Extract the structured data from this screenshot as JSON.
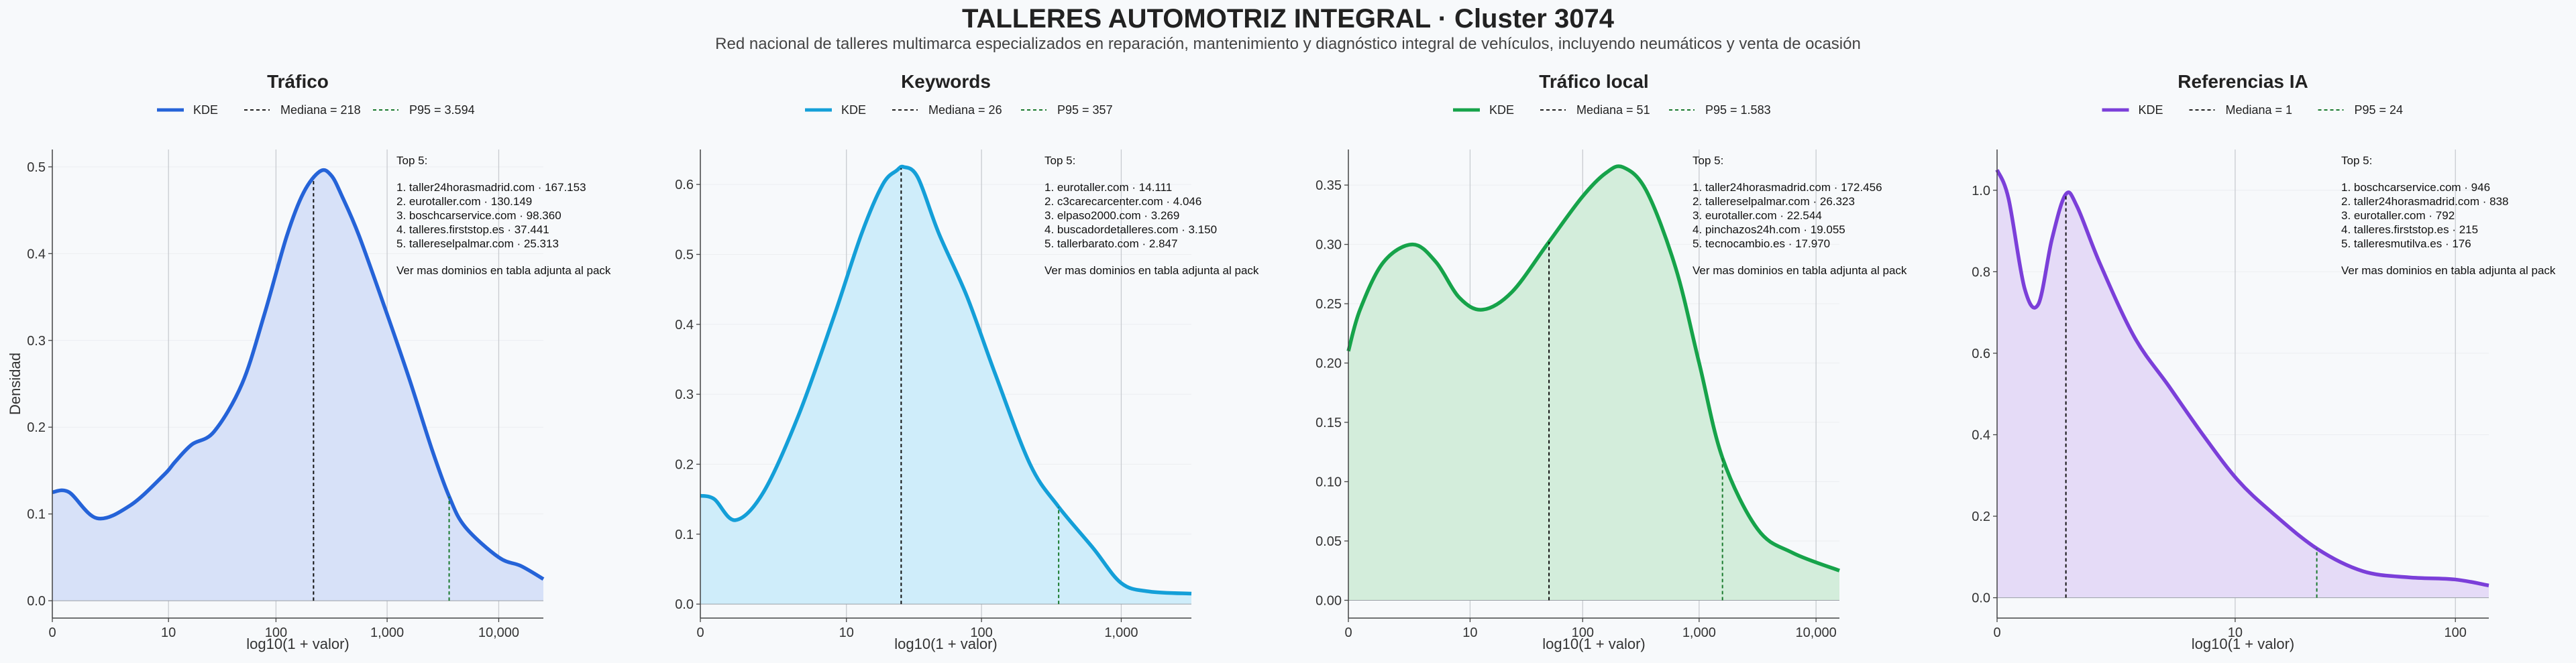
{
  "title": "TALLERES AUTOMOTRIZ INTEGRAL · Cluster 3074",
  "subtitle": "Red nacional de talleres multimarca especializados en reparación, mantenimiento y diagnóstico integral de vehículos, incluyendo neumáticos y venta de ocasión",
  "chart_data": [
    {
      "type": "area",
      "title": "Tráfico",
      "color": "#2563d8",
      "fill": "#d7e1f8",
      "xlabel": "log10(1 + valor)",
      "ylabel": "Densidad",
      "xscale": "log10(1+x)",
      "xlim": [
        0,
        4.4
      ],
      "ylim": [
        -0.02,
        0.52
      ],
      "yticks": [
        0.0,
        0.1,
        0.2,
        0.3,
        0.4,
        0.5
      ],
      "ytick_labels": [
        "0.0",
        "0.1",
        "0.2",
        "0.3",
        "0.4",
        "0.5"
      ],
      "xticks": [
        0,
        1.041,
        2.004,
        3.0,
        4.0
      ],
      "xtick_labels": [
        "0",
        "10",
        "100",
        "1,000",
        "10,000"
      ],
      "legend": {
        "kde": "KDE",
        "median": "Mediana = 218",
        "p95": "P95 = 3.594"
      },
      "median": 218,
      "p95": 3594,
      "series": [
        {
          "name": "KDE",
          "x": [
            0,
            0.15,
            0.4,
            0.7,
            1.0,
            1.1,
            1.25,
            1.45,
            1.7,
            1.9,
            2.1,
            2.25,
            2.4,
            2.5,
            2.6,
            2.75,
            3.0,
            3.2,
            3.4,
            3.556,
            3.7,
            4.0,
            4.2,
            4.4
          ],
          "y": [
            0.125,
            0.125,
            0.095,
            0.11,
            0.145,
            0.16,
            0.18,
            0.195,
            0.25,
            0.33,
            0.42,
            0.47,
            0.495,
            0.49,
            0.465,
            0.42,
            0.33,
            0.255,
            0.175,
            0.12,
            0.085,
            0.05,
            0.04,
            0.025
          ]
        }
      ],
      "top5": [
        "Top 5:",
        "1. taller24horasmadrid.com · 167.153",
        "2. eurotaller.com · 130.149",
        "3. boschcarservice.com · 98.360",
        "4. talleres.firststop.es · 37.441",
        "5. tallereselpalmar.com · 25.313"
      ],
      "note": "Ver mas dominios en tabla adjunta al pack"
    },
    {
      "type": "area",
      "title": "Keywords",
      "color": "#149fd8",
      "fill": "#cfedfa",
      "xlabel": "log10(1 + valor)",
      "ylabel": "",
      "xscale": "log10(1+x)",
      "xlim": [
        0,
        3.5
      ],
      "ylim": [
        -0.02,
        0.65
      ],
      "yticks": [
        0.0,
        0.1,
        0.2,
        0.3,
        0.4,
        0.5,
        0.6
      ],
      "ytick_labels": [
        "0.0",
        "0.1",
        "0.2",
        "0.3",
        "0.4",
        "0.5",
        "0.6"
      ],
      "xticks": [
        0,
        1.041,
        2.004,
        3.0
      ],
      "xtick_labels": [
        "0",
        "10",
        "100",
        "1,000"
      ],
      "legend": {
        "kde": "KDE",
        "median": "Mediana = 26",
        "p95": "P95 = 357"
      },
      "median": 26,
      "p95": 357,
      "series": [
        {
          "name": "KDE",
          "x": [
            0,
            0.1,
            0.25,
            0.45,
            0.7,
            0.95,
            1.15,
            1.3,
            1.4,
            1.45,
            1.55,
            1.7,
            1.9,
            2.1,
            2.35,
            2.55,
            2.8,
            3.0,
            3.2,
            3.5
          ],
          "y": [
            0.155,
            0.15,
            0.12,
            0.16,
            0.27,
            0.41,
            0.53,
            0.6,
            0.62,
            0.625,
            0.61,
            0.53,
            0.44,
            0.33,
            0.2,
            0.14,
            0.08,
            0.03,
            0.018,
            0.015
          ]
        }
      ],
      "top5": [
        "Top 5:",
        "1. eurotaller.com · 14.111",
        "2. c3carecarcenter.com · 4.046",
        "3. elpaso2000.com · 3.269",
        "4. buscadordetalleres.com · 3.150",
        "5. tallerbarato.com · 2.847"
      ],
      "note": "Ver mas dominios en tabla adjunta al pack"
    },
    {
      "type": "area",
      "title": "Tráfico local",
      "color": "#16a34a",
      "fill": "#d3eddb",
      "xlabel": "log10(1 + valor)",
      "ylabel": "",
      "xscale": "log10(1+x)",
      "xlim": [
        0,
        4.2
      ],
      "ylim": [
        -0.015,
        0.38
      ],
      "yticks": [
        0.0,
        0.05,
        0.1,
        0.15,
        0.2,
        0.25,
        0.3,
        0.35
      ],
      "ytick_labels": [
        "0.00",
        "0.05",
        "0.10",
        "0.15",
        "0.20",
        "0.25",
        "0.30",
        "0.35"
      ],
      "xticks": [
        0,
        1.041,
        2.004,
        3.0,
        4.0
      ],
      "xtick_labels": [
        "0",
        "10",
        "100",
        "1,000",
        "10,000"
      ],
      "legend": {
        "kde": "KDE",
        "median": "Mediana = 51",
        "p95": "P95 = 1.583"
      },
      "median": 51,
      "p95": 1583,
      "series": [
        {
          "name": "KDE",
          "x": [
            0,
            0.1,
            0.3,
            0.55,
            0.75,
            0.95,
            1.15,
            1.4,
            1.7,
            2.0,
            2.2,
            2.35,
            2.55,
            2.8,
            3.0,
            3.2,
            3.5,
            3.8,
            4.2
          ],
          "y": [
            0.21,
            0.245,
            0.285,
            0.3,
            0.285,
            0.255,
            0.245,
            0.26,
            0.3,
            0.34,
            0.36,
            0.365,
            0.345,
            0.28,
            0.2,
            0.12,
            0.06,
            0.04,
            0.025
          ]
        }
      ],
      "top5": [
        "Top 5:",
        "1. taller24horasmadrid.com · 172.456",
        "2. tallereselpalmar.com · 26.323",
        "3. eurotaller.com · 22.544",
        "4. pinchazos24h.com · 19.055",
        "5. tecnocambio.es · 17.970"
      ],
      "note": "Ver mas dominios en tabla adjunta al pack"
    },
    {
      "type": "area",
      "title": "Referencias IA",
      "color": "#7b3fd9",
      "fill": "#e5dbf7",
      "xlabel": "log10(1 + valor)",
      "ylabel": "",
      "xscale": "log10(1+x)",
      "xlim": [
        0,
        2.15
      ],
      "ylim": [
        -0.05,
        1.1
      ],
      "yticks": [
        0.0,
        0.2,
        0.4,
        0.6,
        0.8,
        1.0
      ],
      "ytick_labels": [
        "0.0",
        "0.2",
        "0.4",
        "0.6",
        "0.8",
        "1.0"
      ],
      "xticks": [
        0,
        1.041,
        2.004
      ],
      "xtick_labels": [
        "0",
        "10",
        "100"
      ],
      "legend": {
        "kde": "KDE",
        "median": "Mediana = 1",
        "p95": "P95 = 24"
      },
      "median": 1,
      "p95": 24,
      "series": [
        {
          "name": "KDE",
          "x": [
            0,
            0.05,
            0.12,
            0.18,
            0.24,
            0.3,
            0.35,
            0.45,
            0.6,
            0.75,
            0.9,
            1.05,
            1.2,
            1.4,
            1.6,
            1.8,
            2.0,
            2.15
          ],
          "y": [
            1.05,
            0.98,
            0.76,
            0.72,
            0.88,
            0.99,
            0.96,
            0.82,
            0.64,
            0.52,
            0.4,
            0.29,
            0.21,
            0.12,
            0.065,
            0.05,
            0.045,
            0.03
          ]
        }
      ],
      "top5": [
        "Top 5:",
        "1. boschcarservice.com · 946",
        "2. taller24horasmadrid.com · 838",
        "3. eurotaller.com · 792",
        "4. talleres.firststop.es · 215",
        "5. talleresmutilva.es · 176"
      ],
      "note": "Ver mas dominios en tabla adjunta al pack"
    }
  ]
}
